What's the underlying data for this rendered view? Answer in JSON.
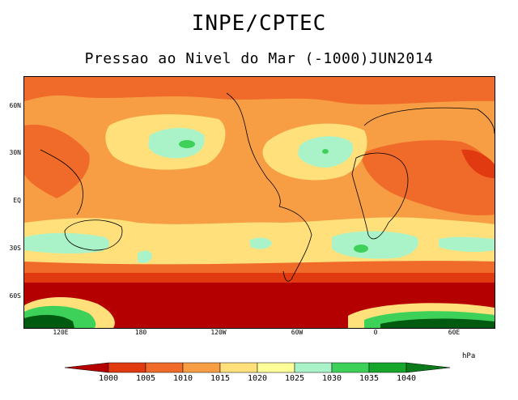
{
  "header": {
    "title": "INPE/CPTEC",
    "subtitle": "Pressao ao Nivel do Mar (-1000)JUN2014"
  },
  "map": {
    "lat_ticks": [
      "60N",
      "30N",
      "EQ",
      "30S",
      "60S"
    ],
    "lon_ticks": [
      "120E",
      "180",
      "120W",
      "60W",
      "0",
      "60E"
    ]
  },
  "legend": {
    "unit": "hPa",
    "levels": [
      "1000",
      "1005",
      "1010",
      "1015",
      "1020",
      "1025",
      "1030",
      "1035",
      "1040"
    ],
    "colors": [
      "#b40000",
      "#e23a10",
      "#f06b2a",
      "#f79e45",
      "#ffe07a",
      "#ffff9a",
      "#aaf3c8",
      "#3ed15a",
      "#17a62c",
      "#0a7a1a",
      "#005a10"
    ]
  }
}
